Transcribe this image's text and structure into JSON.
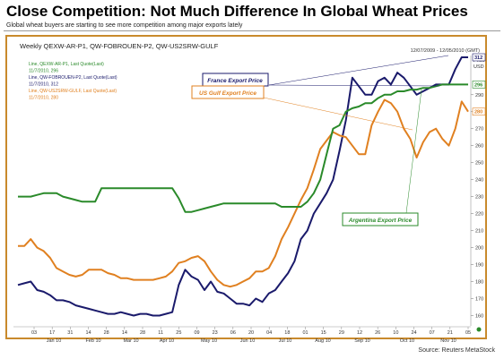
{
  "title": "Close Competition: Not Much Difference In Global Wheat Prices",
  "subtitle": "Global wheat buyers are starting to see more competition among major exports lately",
  "source": "Source: Reuters MetaStock",
  "chart_data": {
    "type": "line",
    "panel_title": "Weekly QEXW-AR-P1, QW-FOBROUEN-P2, QW-US2SRW-GULF",
    "date_range": "12/07/2009 - 12/05/2010 (GMT)",
    "price_label": "Price",
    "unit_label": "USD",
    "legend_lines": [
      {
        "text": "Line, QEXW-AR-P1, Last Quote(Last)",
        "color": "#2a8a2a"
      },
      {
        "text": "11/7/2010, 296",
        "color": "#2a8a2a"
      },
      {
        "text": "Line, QW-FOBROUEN-P2, Last Quote(Last)",
        "color": "#1a1a6b"
      },
      {
        "text": "11/7/2010, 312",
        "color": "#1a1a6b"
      },
      {
        "text": "Line, QW-US2SRW-GULF, Last Quote(Last)",
        "color": "#e08020"
      },
      {
        "text": "11/7/2010, 280",
        "color": "#e08020"
      }
    ],
    "ylim": [
      155,
      312
    ],
    "y_ticks": [
      160,
      170,
      180,
      190,
      200,
      210,
      220,
      230,
      240,
      250,
      260,
      270,
      280,
      290
    ],
    "y_tick_labels": [
      "160",
      "170",
      "180",
      "190",
      "200",
      "210",
      "220",
      "230",
      "240",
      "250",
      "260",
      "270",
      "280",
      "290"
    ],
    "last_value_labels": [
      {
        "value": 312,
        "text": "312",
        "color": "#1a1a6b"
      },
      {
        "value": 296,
        "text": "296",
        "color": "#2a8a2a"
      },
      {
        "value": 280,
        "text": "280",
        "color": "#e08020"
      }
    ],
    "x_day_labels": [
      "03",
      "17",
      "31",
      "14",
      "28",
      "14",
      "28",
      "11",
      "25",
      "09",
      "23",
      "06",
      "20",
      "04",
      "18",
      "01",
      "15",
      "29",
      "12",
      "26",
      "10",
      "24",
      "07",
      "21",
      "05"
    ],
    "x_month_labels": [
      "Jan 10",
      "Feb 10",
      "Mar 10",
      "Apr 10",
      "May 10",
      "Jun 10",
      "Jul 10",
      "Aug 10",
      "Sep 10",
      "Oct 10",
      "Nov 10"
    ],
    "series": [
      {
        "name": "France Export Price",
        "color": "#1a1a6b",
        "values": [
          178,
          179,
          180,
          175,
          174,
          172,
          169,
          169,
          168,
          166,
          165,
          164,
          163,
          162,
          161,
          161,
          162,
          161,
          160,
          161,
          161,
          160,
          160,
          161,
          162,
          178,
          187,
          183,
          181,
          175,
          180,
          174,
          173,
          170,
          167,
          167,
          166,
          170,
          168,
          173,
          175,
          180,
          185,
          192,
          205,
          210,
          220,
          226,
          232,
          240,
          257,
          275,
          300,
          295,
          290,
          290,
          298,
          300,
          296,
          303,
          300,
          295,
          290,
          292,
          294,
          296,
          296,
          296,
          305,
          312,
          312
        ]
      },
      {
        "name": "US Gulf Export Price",
        "color": "#e08020",
        "values": [
          201,
          201,
          205,
          200,
          198,
          194,
          188,
          186,
          184,
          183,
          184,
          187,
          187,
          187,
          185,
          184,
          182,
          182,
          181,
          181,
          181,
          181,
          182,
          183,
          186,
          191,
          192,
          194,
          195,
          192,
          186,
          181,
          178,
          177,
          178,
          180,
          182,
          186,
          186,
          188,
          195,
          205,
          212,
          220,
          228,
          235,
          246,
          258,
          263,
          268,
          266,
          265,
          260,
          255,
          255,
          272,
          280,
          287,
          285,
          280,
          270,
          264,
          253,
          262,
          268,
          270,
          264,
          260,
          270,
          286,
          280
        ]
      },
      {
        "name": "Argentina Export Price",
        "color": "#2a8a2a",
        "values": [
          230,
          230,
          230,
          231,
          232,
          232,
          232,
          230,
          229,
          228,
          227,
          227,
          227,
          235,
          235,
          235,
          235,
          235,
          235,
          235,
          235,
          235,
          235,
          235,
          235,
          229,
          221,
          221,
          222,
          223,
          224,
          225,
          226,
          226,
          226,
          226,
          226,
          226,
          226,
          226,
          226,
          224,
          224,
          224,
          224,
          227,
          232,
          240,
          255,
          270,
          272,
          280,
          282,
          283,
          285,
          285,
          288,
          290,
          290,
          292,
          292,
          293,
          293,
          294,
          294,
          295,
          296,
          296,
          296,
          296,
          296
        ]
      }
    ],
    "annotations": [
      {
        "text": "France Export Price",
        "color": "#1a1a6b"
      },
      {
        "text": "US Gulf Export Price",
        "color": "#e08020"
      },
      {
        "text": "Argentina Export Price",
        "color": "#2a8a2a"
      }
    ]
  }
}
